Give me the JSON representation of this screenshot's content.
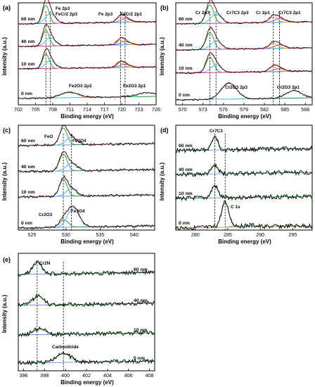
{
  "chart_data": [
    {
      "panel": "(a)",
      "type": "line",
      "xlabel": "Binding energy (eV)",
      "ylabel": "Intensity (a.u.)",
      "xlim": [
        702,
        726
      ],
      "reversed": false,
      "xticks": [
        702,
        705,
        708,
        711,
        714,
        717,
        720,
        723,
        726
      ],
      "traces": [
        {
          "name": "60 nm",
          "peaks": [
            {
              "c": 706.8,
              "h": 1.0,
              "w": 0.8
            },
            {
              "c": 707.6,
              "h": 0.55,
              "w": 1.2
            },
            {
              "c": 719.8,
              "h": 0.3,
              "w": 0.9
            },
            {
              "c": 720.6,
              "h": 0.2,
              "w": 1.2
            }
          ]
        },
        {
          "name": "40 nm",
          "peaks": [
            {
              "c": 706.8,
              "h": 0.95,
              "w": 0.8
            },
            {
              "c": 707.6,
              "h": 0.5,
              "w": 1.2
            },
            {
              "c": 719.8,
              "h": 0.28,
              "w": 0.9
            },
            {
              "c": 720.6,
              "h": 0.2,
              "w": 1.2
            }
          ]
        },
        {
          "name": "10 nm",
          "peaks": [
            {
              "c": 706.8,
              "h": 0.95,
              "w": 0.8
            },
            {
              "c": 707.6,
              "h": 0.5,
              "w": 1.2
            },
            {
              "c": 719.8,
              "h": 0.28,
              "w": 0.9
            },
            {
              "c": 720.6,
              "h": 0.2,
              "w": 1.2
            }
          ]
        },
        {
          "name": "0 nm",
          "peaks": [
            {
              "c": 710.9,
              "h": 0.35,
              "w": 2.2
            },
            {
              "c": 724.5,
              "h": 0.25,
              "w": 2.4
            }
          ]
        }
      ],
      "dashed_lines": [
        706.8,
        707.6,
        719.8,
        720.6
      ],
      "annotations": [
        "Fe 2p3",
        "FeCr2 2p3",
        "Fe 2p3",
        "FeCr2 2p1",
        "Fe2O3 2p3",
        "Fe2O3 2p1"
      ]
    },
    {
      "panel": "(b)",
      "type": "line",
      "xlabel": "Binding energy (eV)",
      "ylabel": "Intensity (a.u.)",
      "xlim": [
        569,
        589
      ],
      "reversed": false,
      "xticks": [
        570,
        573,
        576,
        579,
        582,
        585,
        588
      ],
      "traces": [
        {
          "name": "60 nm",
          "peaks": [
            {
              "c": 574.0,
              "h": 1.0,
              "w": 0.8
            },
            {
              "c": 574.9,
              "h": 0.5,
              "w": 1.1
            },
            {
              "c": 583.3,
              "h": 0.3,
              "w": 0.9
            },
            {
              "c": 584.2,
              "h": 0.2,
              "w": 1.1
            }
          ]
        },
        {
          "name": "40 nm",
          "peaks": [
            {
              "c": 574.0,
              "h": 1.0,
              "w": 0.8
            },
            {
              "c": 574.9,
              "h": 0.5,
              "w": 1.1
            },
            {
              "c": 583.3,
              "h": 0.3,
              "w": 0.9
            },
            {
              "c": 584.2,
              "h": 0.2,
              "w": 1.1
            }
          ]
        },
        {
          "name": "10 nm",
          "peaks": [
            {
              "c": 574.0,
              "h": 1.0,
              "w": 0.8
            },
            {
              "c": 574.9,
              "h": 0.5,
              "w": 1.1
            },
            {
              "c": 583.3,
              "h": 0.3,
              "w": 0.9
            },
            {
              "c": 584.2,
              "h": 0.2,
              "w": 1.1
            }
          ]
        },
        {
          "name": "0 nm",
          "peaks": [
            {
              "c": 576.8,
              "h": 0.75,
              "w": 1.6
            },
            {
              "c": 586.3,
              "h": 0.35,
              "w": 1.6
            }
          ]
        }
      ],
      "dashed_lines": [
        574.0,
        574.9,
        583.3,
        584.2
      ],
      "annotations": [
        "Cr 2p3",
        "Cr7C3 2p3",
        "Cr 2p1",
        "Cr7C3 2p1",
        "Cr2O3 2p3",
        "Cr2O3 2p1"
      ]
    },
    {
      "panel": "(c)",
      "type": "line",
      "xlabel": "Binding energy (eV)",
      "ylabel": "Intensity (a.u.)",
      "xlim": [
        523,
        543
      ],
      "reversed": false,
      "xticks": [
        525,
        530,
        535,
        540
      ],
      "traces": [
        {
          "name": "60 nm",
          "peaks": [
            {
              "c": 529.6,
              "h": 1.0,
              "w": 0.8
            },
            {
              "c": 530.8,
              "h": 0.45,
              "w": 1.1
            }
          ]
        },
        {
          "name": "40 nm",
          "peaks": [
            {
              "c": 529.6,
              "h": 1.0,
              "w": 0.8
            },
            {
              "c": 530.8,
              "h": 0.45,
              "w": 1.1
            }
          ]
        },
        {
          "name": "10 nm",
          "peaks": [
            {
              "c": 529.6,
              "h": 1.0,
              "w": 0.8
            },
            {
              "c": 530.8,
              "h": 0.45,
              "w": 1.1
            }
          ]
        },
        {
          "name": "0 nm",
          "peaks": [
            {
              "c": 529.7,
              "h": 0.35,
              "w": 0.9
            },
            {
              "c": 531.1,
              "h": 0.95,
              "w": 1.2
            }
          ]
        }
      ],
      "dashed_lines": [
        529.6,
        530.8
      ],
      "annotations": [
        "FeO",
        "Fe3O4",
        "Cr2O3",
        "Fe3O4"
      ]
    },
    {
      "panel": "(d)",
      "type": "line",
      "xlabel": "Binding energy (eV)",
      "ylabel": "Intensity (a.u.)",
      "xlim": [
        277,
        298
      ],
      "reversed": false,
      "xticks": [
        280,
        285,
        290,
        295
      ],
      "traces": [
        {
          "name": "60 nm",
          "peaks": [
            {
              "c": 283.0,
              "h": 1.0,
              "w": 0.7
            }
          ]
        },
        {
          "name": "40 nm",
          "peaks": [
            {
              "c": 283.0,
              "h": 0.85,
              "w": 0.7
            }
          ]
        },
        {
          "name": "10 nm",
          "peaks": [
            {
              "c": 283.0,
              "h": 0.95,
              "w": 0.7
            }
          ]
        },
        {
          "name": "0 nm",
          "peaks": [
            {
              "c": 284.6,
              "h": 1.6,
              "w": 0.8
            },
            {
              "c": 286.3,
              "h": 0.1,
              "w": 1.0
            },
            {
              "c": 288.6,
              "h": 0.1,
              "w": 1.0
            }
          ]
        }
      ],
      "dashed_lines": [
        283.0,
        284.6
      ],
      "annotations": [
        "Cr7C3",
        "C 1s"
      ]
    },
    {
      "panel": "(e)",
      "type": "line",
      "xlabel": "Binding energy (eV)",
      "ylabel": "Intensity (a.u.)",
      "xlim": [
        395.5,
        408.5
      ],
      "reversed": false,
      "xticks": [
        396,
        398,
        400,
        402,
        404,
        406,
        408
      ],
      "traces": [
        {
          "name": "60 nm",
          "peaks": [
            {
              "c": 397.3,
              "h": 1.0,
              "w": 0.6
            }
          ]
        },
        {
          "name": "40 nm",
          "peaks": [
            {
              "c": 397.4,
              "h": 0.8,
              "w": 0.7
            }
          ]
        },
        {
          "name": "10 nm",
          "peaks": [
            {
              "c": 397.5,
              "h": 0.6,
              "w": 0.8
            }
          ]
        },
        {
          "name": "0 nm",
          "peaks": [
            {
              "c": 399.8,
              "h": 0.9,
              "w": 1.0
            }
          ]
        }
      ],
      "dashed_lines": [
        397.3,
        399.8
      ],
      "annotations": [
        "Cr2N",
        "Carbonitride"
      ]
    }
  ]
}
